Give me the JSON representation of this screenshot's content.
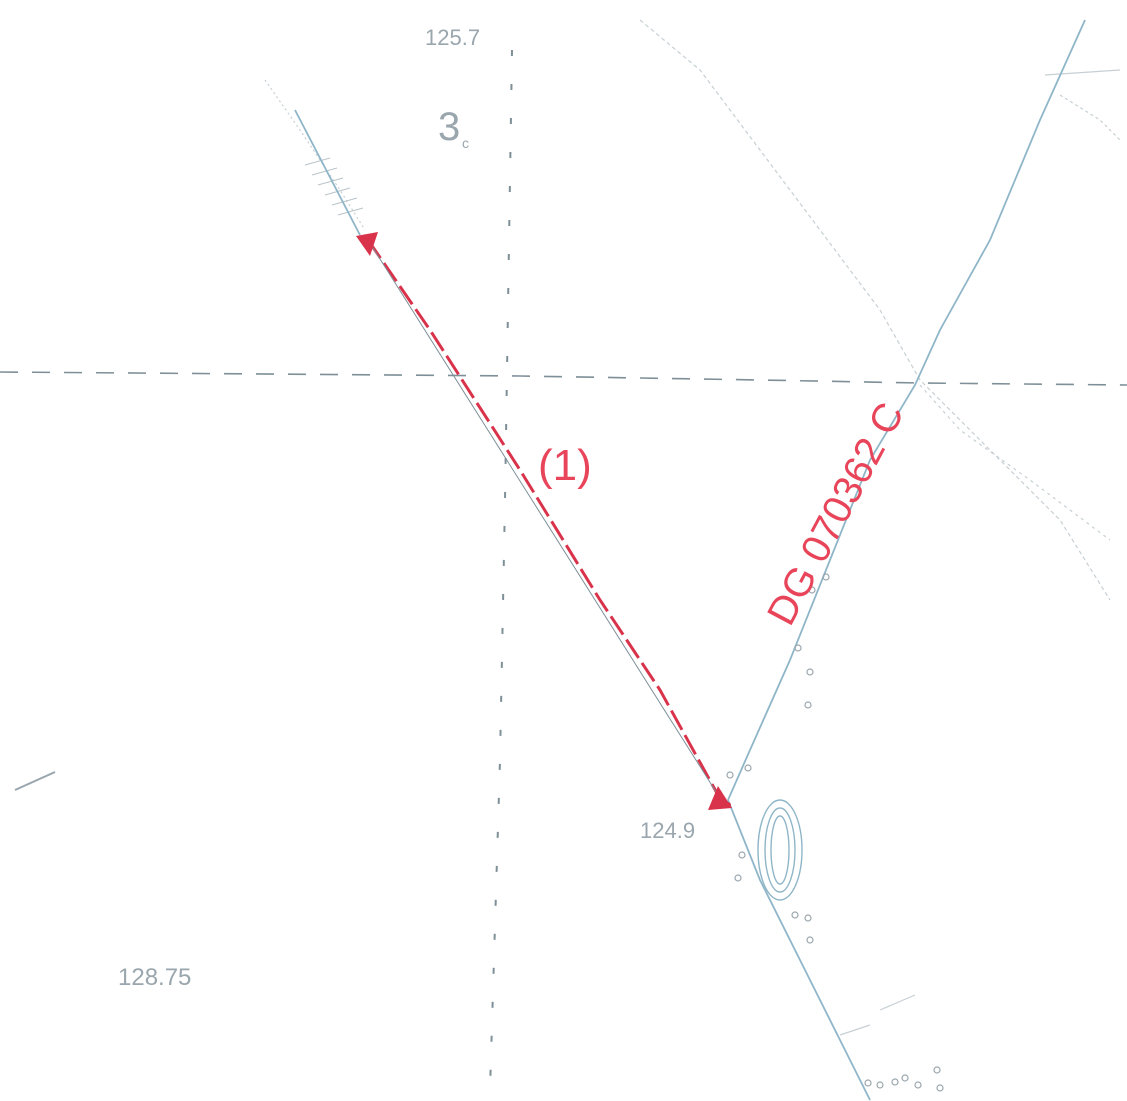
{
  "map": {
    "elevation_top": "125.7",
    "elevation_point": "124.9",
    "elevation_bottom_left": "128.75",
    "section_marker": "(1)",
    "route_code": "DG 070362 C",
    "parcel_label": "3",
    "parcel_sub": "c",
    "colors": {
      "paper": "#ffffff",
      "cadastral_line": "#8fb6c8",
      "faint_line": "#b9c4ca",
      "dash_line": "#7e8f98",
      "red_annotation": "#e8455a",
      "red_line": "#d9334b"
    }
  }
}
